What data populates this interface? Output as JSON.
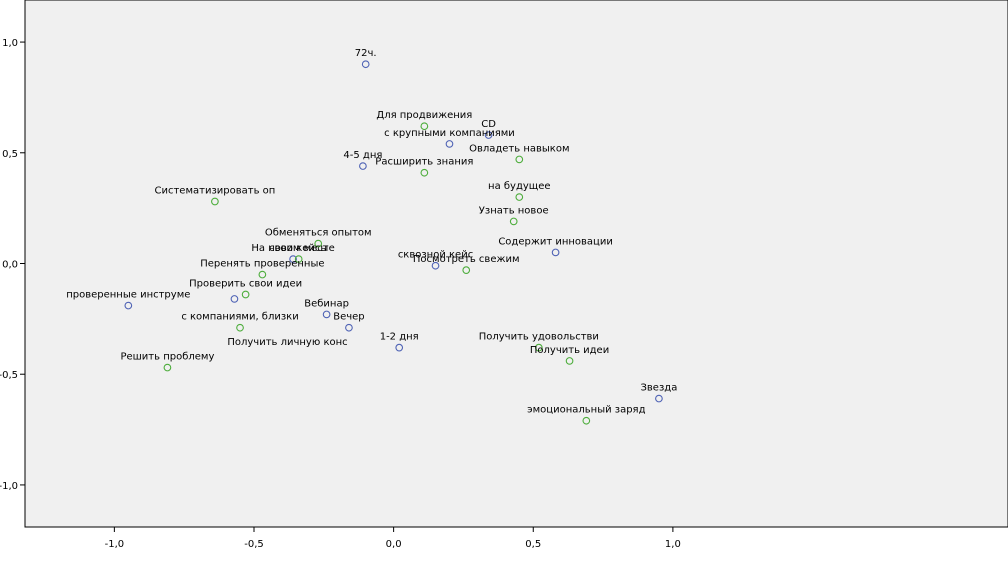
{
  "chart_data": {
    "type": "scatter",
    "title": "",
    "xlabel": "",
    "ylabel": "",
    "xlim": [
      -1.32,
      2.2
    ],
    "ylim": [
      -1.19,
      1.19
    ],
    "x_ticks": [
      {
        "value": -1.0,
        "label": "-1,0"
      },
      {
        "value": -0.5,
        "label": "-0,5"
      },
      {
        "value": 0.0,
        "label": "0,0"
      },
      {
        "value": 0.5,
        "label": "0,5"
      },
      {
        "value": 1.0,
        "label": "1,0"
      }
    ],
    "y_ticks": [
      {
        "value": 1.0,
        "label": "1,0"
      },
      {
        "value": 0.5,
        "label": "0,5"
      },
      {
        "value": 0.0,
        "label": "0,0"
      },
      {
        "value": -0.5,
        "label": "-0,5"
      },
      {
        "value": -1.0,
        "label": "-1,0"
      }
    ],
    "grid": false,
    "colors": {
      "background": "#f0f0f0",
      "series_a": "#4f63b5",
      "series_b": "#4dad3c",
      "text": "#000000"
    },
    "series": [
      {
        "color_key": "series_a",
        "points": [
          {
            "x": -0.1,
            "y": 0.9,
            "label": "72ч."
          },
          {
            "x": 0.34,
            "y": 0.58,
            "label": "CD"
          },
          {
            "x": 0.2,
            "y": 0.54,
            "label": "с крупными компаниями"
          },
          {
            "x": -0.11,
            "y": 0.44,
            "label": "4-5 дня"
          },
          {
            "x": 0.58,
            "y": 0.05,
            "label": "Содержит инновации"
          },
          {
            "x": -0.36,
            "y": 0.02,
            "label": "На новом месте"
          },
          {
            "x": 0.15,
            "y": -0.01,
            "label": "сквозной кейс"
          },
          {
            "x": -0.95,
            "y": -0.19,
            "label": "проверенные инструме"
          },
          {
            "x": -0.57,
            "y": -0.16,
            "label": ""
          },
          {
            "x": -0.24,
            "y": -0.23,
            "label": "Вебинар"
          },
          {
            "x": -0.16,
            "y": -0.29,
            "label": "Вечер"
          },
          {
            "x": 0.02,
            "y": -0.38,
            "label": "1-2 дня"
          },
          {
            "x": 0.95,
            "y": -0.61,
            "label": "Звезда"
          }
        ]
      },
      {
        "color_key": "series_b",
        "points": [
          {
            "x": 0.11,
            "y": 0.62,
            "label": "Для продвижения"
          },
          {
            "x": 0.45,
            "y": 0.47,
            "label": "Овладеть навыком"
          },
          {
            "x": 0.11,
            "y": 0.41,
            "label": "Расширить знания"
          },
          {
            "x": 0.45,
            "y": 0.3,
            "label": "на будущее"
          },
          {
            "x": -0.64,
            "y": 0.28,
            "label": "Систематизировать оп"
          },
          {
            "x": 0.43,
            "y": 0.19,
            "label": "Узнать новое"
          },
          {
            "x": -0.27,
            "y": 0.09,
            "label": "Обменяться опытом"
          },
          {
            "x": -0.34,
            "y": 0.02,
            "label": "свои кейсы"
          },
          {
            "x": -0.47,
            "y": -0.05,
            "label": "Перенять проверенные"
          },
          {
            "x": 0.26,
            "y": -0.03,
            "label": "Посмотреть свежим"
          },
          {
            "x": -0.53,
            "y": -0.14,
            "label": "Проверить свои идеи"
          },
          {
            "x": -0.55,
            "y": -0.29,
            "label": "с компаниями, близки"
          },
          {
            "x": 0.52,
            "y": -0.38,
            "label": "Получить удовольстви"
          },
          {
            "x": 0.63,
            "y": -0.44,
            "label": "Получить идеи"
          },
          {
            "x": -0.81,
            "y": -0.47,
            "label": "Решить проблему"
          },
          {
            "x": 0.69,
            "y": -0.71,
            "label": "эмоциональный  заряд"
          }
        ]
      }
    ],
    "free_labels": [
      {
        "text": "Получить личную конс",
        "x": -0.38,
        "y": -0.35
      }
    ]
  }
}
